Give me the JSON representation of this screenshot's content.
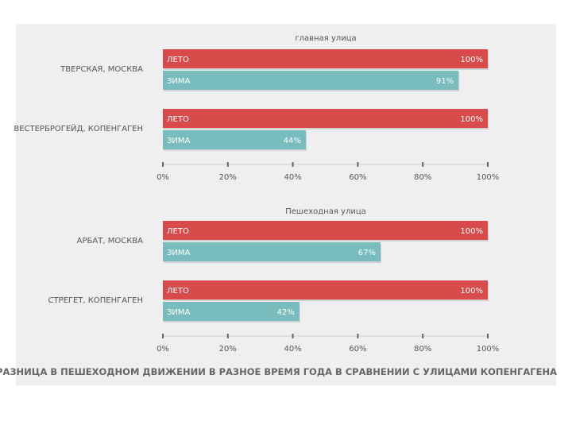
{
  "chart_data": [
    {
      "type": "bar",
      "orientation": "horizontal",
      "title": "главная улица",
      "categories": [
        "ТВЕРСКАЯ, МОСКВА",
        "ВЕСТЕРБРОГЕЙД, КОПЕНГАГЕН"
      ],
      "series": [
        {
          "name": "ЛЕТО",
          "color": "#d94b4b",
          "values": [
            100,
            100
          ],
          "labels": [
            "100%",
            "100%"
          ]
        },
        {
          "name": "ЗИМА",
          "color": "#78bcbd",
          "values": [
            91,
            44
          ],
          "labels": [
            "91%",
            "44%"
          ]
        }
      ],
      "xlim": [
        0,
        100
      ],
      "ticks": [
        "0%",
        "20%",
        "40%",
        "60%",
        "80%",
        "100%"
      ]
    },
    {
      "type": "bar",
      "orientation": "horizontal",
      "title": "Пешеходная улица",
      "categories": [
        "АРБАТ, МОСКВА",
        "СТРЕГЕТ, КОПЕНГАГЕН"
      ],
      "series": [
        {
          "name": "ЛЕТО",
          "color": "#d94b4b",
          "values": [
            100,
            100
          ],
          "labels": [
            "100%",
            "100%"
          ]
        },
        {
          "name": "ЗИМА",
          "color": "#78bcbd",
          "values": [
            67,
            42
          ],
          "labels": [
            "67%",
            "42%"
          ]
        }
      ],
      "xlim": [
        0,
        100
      ],
      "ticks": [
        "0%",
        "20%",
        "40%",
        "60%",
        "80%",
        "100%"
      ]
    }
  ],
  "caption": "РАЗНИЦА В ПЕШЕХОДНОМ ДВИЖЕНИИ В РАЗНОЕ ВРЕМЯ ГОДА В СРАВНЕНИИ С УЛИЦАМИ КОПЕНГАГЕНА"
}
